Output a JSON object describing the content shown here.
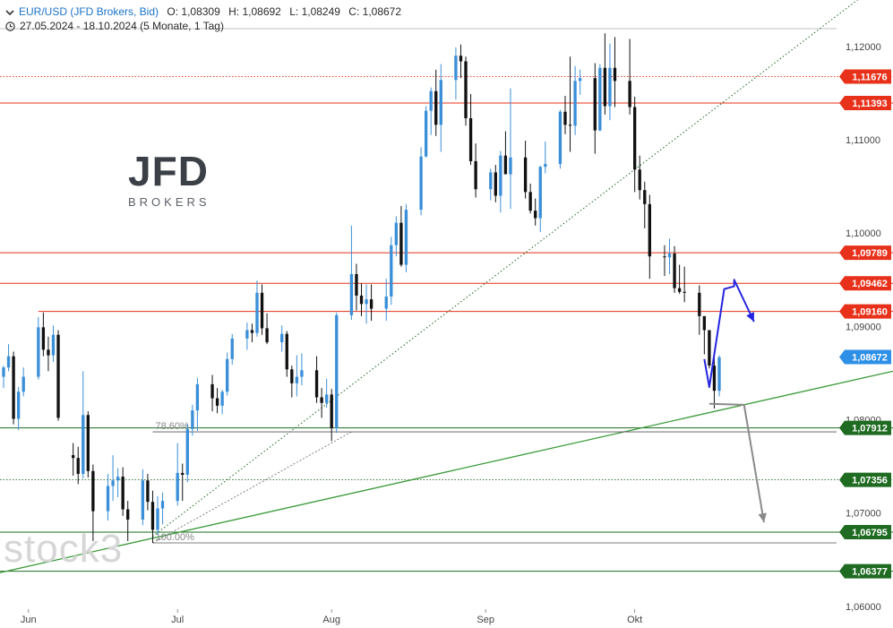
{
  "header": {
    "symbol": "EUR/USD (JFD Brokers, Bid)",
    "open_label": "O:",
    "open": "1,08309",
    "high_label": "H:",
    "high": "1,08692",
    "low_label": "L:",
    "low": "1,08249",
    "close_label": "C:",
    "close": "1,08672",
    "date_range": "27.05.2024 - 18.10.2024",
    "period": "(5 Monate, 1 Tag)"
  },
  "logo": {
    "name": "JFD",
    "sub": "BROKERS"
  },
  "watermark": "stock3",
  "colors": {
    "up": "#3a8fd8",
    "down": "#111111",
    "resistance": "#e8311a",
    "support": "#1f6b21",
    "current": "#2d8fe6",
    "trend": "#3a9a3a",
    "blue_arrow": "#2424e0",
    "gray_arrow": "#8a8a8a",
    "grid_text": "#444444"
  },
  "chart_data": {
    "type": "candlestick",
    "x": [
      "27.05.2024",
      "18.10.2024"
    ],
    "ylim": [
      1.0597,
      1.1219
    ],
    "y_ticks": [
      {
        "v": 1.06,
        "label": "1,06000"
      },
      {
        "v": 1.07,
        "label": "1,07000"
      },
      {
        "v": 1.08,
        "label": "1,08000"
      },
      {
        "v": 1.09,
        "label": "1,09000"
      },
      {
        "v": 1.1,
        "label": "1,10000"
      },
      {
        "v": 1.11,
        "label": "1,11000"
      },
      {
        "v": 1.12,
        "label": "1,12000"
      }
    ],
    "x_ticks": [
      {
        "date": "01.06.2024",
        "label": "Jun"
      },
      {
        "date": "01.07.2024",
        "label": "Jul"
      },
      {
        "date": "01.08.2024",
        "label": "Aug"
      },
      {
        "date": "01.09.2024",
        "label": "Sep"
      },
      {
        "date": "01.10.2024",
        "label": "Okt"
      }
    ],
    "levels": [
      {
        "value": 1.11676,
        "label": "1,11676",
        "kind": "resistance",
        "style": "dotted"
      },
      {
        "value": 1.11393,
        "label": "1,11393",
        "kind": "resistance",
        "style": "solid"
      },
      {
        "value": 1.09789,
        "label": "1,09789",
        "kind": "resistance",
        "style": "solid"
      },
      {
        "value": 1.09462,
        "label": "1,09462",
        "kind": "resistance",
        "style": "solid"
      },
      {
        "value": 1.0916,
        "label": "1,09160",
        "kind": "resistance",
        "style": "solid",
        "start": "03.06.2024"
      },
      {
        "value": 1.08672,
        "label": "1,08672",
        "kind": "current",
        "style": "none"
      },
      {
        "value": 1.07912,
        "label": "1,07912",
        "kind": "support",
        "style": "solid"
      },
      {
        "value": 1.07356,
        "label": "1,07356",
        "kind": "support",
        "style": "dotted"
      },
      {
        "value": 1.06795,
        "label": "1,06795",
        "kind": "support",
        "style": "solid"
      },
      {
        "value": 1.06377,
        "label": "1,06377",
        "kind": "support",
        "style": "solid"
      }
    ],
    "fib": {
      "start": "26.06.2024",
      "end": "05.08.2024",
      "levels": [
        {
          "value": 1.0787,
          "label": "78.60%"
        },
        {
          "value": 1.0668,
          "label": "100.00%"
        }
      ]
    },
    "trendlines": [
      {
        "p1": [
          "27.05.2024",
          1.0637
        ],
        "p2": [
          "18.10.2024",
          1.081
        ],
        "style": "solid"
      },
      {
        "p1": [
          "26.06.2024",
          1.0675
        ],
        "p2": [
          "18.10.2024",
          1.1137
        ],
        "style": "dotted"
      }
    ],
    "projections": [
      {
        "name": "blue",
        "points": [
          [
            "15.10.2024",
            1.0865
          ],
          [
            "16.10.2024",
            1.0835
          ],
          [
            "19.10.2024",
            1.094
          ],
          [
            "21.10.2024",
            1.0943
          ],
          [
            "21.10.2024",
            1.095
          ],
          [
            "25.10.2024",
            1.0905
          ]
        ]
      },
      {
        "name": "gray",
        "points": [
          [
            "16.10.2024",
            1.0817
          ],
          [
            "23.10.2024",
            1.0816
          ],
          [
            "27.10.2024",
            1.069
          ]
        ]
      }
    ],
    "candles": [
      [
        "27.05.2024",
        1.0846,
        1.0858,
        1.0834,
        1.0856
      ],
      [
        "28.05.2024",
        1.0856,
        1.0881,
        1.0852,
        1.0868
      ],
      [
        "29.05.2024",
        1.0868,
        1.0873,
        1.0795,
        1.0801
      ],
      [
        "30.05.2024",
        1.0801,
        1.0835,
        1.0789,
        1.083
      ],
      [
        "31.05.2024",
        1.083,
        1.0856,
        1.0825,
        1.0846
      ],
      [
        "03.06.2024",
        1.0846,
        1.091,
        1.0843,
        1.0899
      ],
      [
        "04.06.2024",
        1.0899,
        1.0915,
        1.0868,
        1.0875
      ],
      [
        "05.06.2024",
        1.0875,
        1.0889,
        1.0852,
        1.0869
      ],
      [
        "06.06.2024",
        1.0869,
        1.0901,
        1.0862,
        1.0891
      ],
      [
        "07.06.2024",
        1.0891,
        1.0896,
        1.0799,
        1.0802
      ],
      [
        "10.06.2024",
        1.0762,
        1.0775,
        1.074,
        1.0759
      ],
      [
        "11.06.2024",
        1.0759,
        1.0771,
        1.0731,
        1.0742
      ],
      [
        "12.06.2024",
        1.0742,
        1.0852,
        1.0737,
        1.0805
      ],
      [
        "13.06.2024",
        1.0805,
        1.0809,
        1.0738,
        1.0745
      ],
      [
        "14.06.2024",
        1.0745,
        1.0752,
        1.067,
        1.0702
      ],
      [
        "17.06.2024",
        1.0702,
        1.0742,
        1.0692,
        1.0729
      ],
      [
        "18.06.2024",
        1.0729,
        1.0762,
        1.0713,
        1.0735
      ],
      [
        "19.06.2024",
        1.0735,
        1.0748,
        1.0717,
        1.0739
      ],
      [
        "20.06.2024",
        1.0739,
        1.0749,
        1.0697,
        1.0704
      ],
      [
        "21.06.2024",
        1.0704,
        1.0713,
        1.067,
        1.0693
      ],
      [
        "24.06.2024",
        1.0693,
        1.0747,
        1.0687,
        1.0735
      ],
      [
        "25.06.2024",
        1.0735,
        1.0742,
        1.0703,
        1.0712
      ],
      [
        "26.06.2024",
        1.0712,
        1.0724,
        1.0668,
        1.0682
      ],
      [
        "27.06.2024",
        1.0682,
        1.0718,
        1.0677,
        1.0705
      ],
      [
        "28.06.2024",
        1.0705,
        1.0722,
        1.0688,
        1.0713
      ],
      [
        "01.07.2024",
        1.0713,
        1.0775,
        1.0708,
        1.0743
      ],
      [
        "02.07.2024",
        1.0743,
        1.0753,
        1.0713,
        1.0741
      ],
      [
        "03.07.2024",
        1.0741,
        1.0796,
        1.0733,
        1.079
      ],
      [
        "04.07.2024",
        1.079,
        1.0816,
        1.0783,
        1.081
      ],
      [
        "05.07.2024",
        1.081,
        1.0845,
        1.0788,
        1.0838
      ],
      [
        "08.07.2024",
        1.0838,
        1.0848,
        1.0809,
        1.0823
      ],
      [
        "09.07.2024",
        1.0823,
        1.0834,
        1.0807,
        1.0815
      ],
      [
        "10.07.2024",
        1.0815,
        1.0832,
        1.0806,
        1.083
      ],
      [
        "11.07.2024",
        1.083,
        1.0872,
        1.0826,
        1.0865
      ],
      [
        "12.07.2024",
        1.0865,
        1.0892,
        1.0859,
        1.0887
      ],
      [
        "15.07.2024",
        1.0887,
        1.0904,
        1.0875,
        1.0896
      ],
      [
        "16.07.2024",
        1.0896,
        1.0903,
        1.0883,
        1.0893
      ],
      [
        "17.07.2024",
        1.0893,
        1.0949,
        1.0889,
        1.0936
      ],
      [
        "18.07.2024",
        1.0936,
        1.0945,
        1.0891,
        1.0898
      ],
      [
        "19.07.2024",
        1.0898,
        1.0914,
        1.0881,
        1.0883
      ],
      [
        "22.07.2024",
        1.0883,
        1.0901,
        1.0873,
        1.0892
      ],
      [
        "23.07.2024",
        1.0892,
        1.0895,
        1.0846,
        1.0854
      ],
      [
        "24.07.2024",
        1.0854,
        1.0858,
        1.0824,
        1.0839
      ],
      [
        "25.07.2024",
        1.0839,
        1.0869,
        1.0825,
        1.0846
      ],
      [
        "26.07.2024",
        1.0846,
        1.0871,
        1.0837,
        1.0853
      ],
      [
        "29.07.2024",
        1.0853,
        1.0868,
        1.0818,
        1.0824
      ],
      [
        "30.07.2024",
        1.0824,
        1.0834,
        1.0802,
        1.0818
      ],
      [
        "31.07.2024",
        1.0818,
        1.0844,
        1.0813,
        1.0827
      ],
      [
        "01.08.2024",
        1.0827,
        1.0833,
        1.0777,
        1.0791
      ],
      [
        "02.08.2024",
        1.0791,
        1.0915,
        1.0786,
        1.0912
      ],
      [
        "05.08.2024",
        1.0912,
        1.1008,
        1.0907,
        1.0956
      ],
      [
        "06.08.2024",
        1.0956,
        1.0967,
        1.0917,
        1.0933
      ],
      [
        "07.08.2024",
        1.0933,
        1.0946,
        1.0911,
        1.0924
      ],
      [
        "08.08.2024",
        1.0924,
        1.0945,
        1.0903,
        1.0929
      ],
      [
        "09.08.2024",
        1.0929,
        1.0945,
        1.0906,
        1.0919
      ],
      [
        "12.08.2024",
        1.0919,
        1.0951,
        1.0906,
        1.0932
      ],
      [
        "13.08.2024",
        1.0932,
        1.0996,
        1.0923,
        1.0987
      ],
      [
        "14.08.2024",
        1.0987,
        1.1018,
        1.0975,
        1.1011
      ],
      [
        "15.08.2024",
        1.1011,
        1.1029,
        1.0964,
        1.0966
      ],
      [
        "16.08.2024",
        1.0966,
        1.1031,
        1.0958,
        1.1025
      ],
      [
        "19.08.2024",
        1.1025,
        1.1092,
        1.1019,
        1.1082
      ],
      [
        "20.08.2024",
        1.1082,
        1.1136,
        1.1081,
        1.1131
      ],
      [
        "21.08.2024",
        1.1131,
        1.1156,
        1.1105,
        1.1152
      ],
      [
        "22.08.2024",
        1.1152,
        1.1175,
        1.1104,
        1.1116
      ],
      [
        "23.08.2024",
        1.1116,
        1.1181,
        1.1087,
        1.1164
      ],
      [
        "26.08.2024",
        1.1164,
        1.1199,
        1.1143,
        1.119
      ],
      [
        "27.08.2024",
        1.119,
        1.1202,
        1.1166,
        1.1184
      ],
      [
        "28.08.2024",
        1.1184,
        1.1189,
        1.1115,
        1.1123
      ],
      [
        "29.08.2024",
        1.1123,
        1.1149,
        1.1073,
        1.1077
      ],
      [
        "30.08.2024",
        1.1077,
        1.1096,
        1.1038,
        1.1047
      ],
      [
        "02.09.2024",
        1.1047,
        1.1069,
        1.1035,
        1.1065
      ],
      [
        "03.09.2024",
        1.1065,
        1.1073,
        1.1033,
        1.104
      ],
      [
        "04.09.2024",
        1.104,
        1.1088,
        1.1022,
        1.1083
      ],
      [
        "05.09.2024",
        1.1083,
        1.1109,
        1.1066,
        1.1063
      ],
      [
        "06.09.2024",
        1.1063,
        1.1155,
        1.1026,
        1.1081
      ],
      [
        "09.09.2024",
        1.1081,
        1.1099,
        1.1037,
        1.1044
      ],
      [
        "10.09.2024",
        1.1044,
        1.1053,
        1.1021,
        1.1024
      ],
      [
        "11.09.2024",
        1.1024,
        1.1037,
        1.1008,
        1.1016
      ],
      [
        "12.09.2024",
        1.1016,
        1.1072,
        1.1001,
        1.1071
      ],
      [
        "13.09.2024",
        1.1071,
        1.1098,
        1.1064,
        1.1074
      ],
      [
        "16.09.2024",
        1.1074,
        1.1132,
        1.1069,
        1.113
      ],
      [
        "17.09.2024",
        1.113,
        1.1147,
        1.1106,
        1.1116
      ],
      [
        "18.09.2024",
        1.1116,
        1.1189,
        1.1087,
        1.1115
      ],
      [
        "19.09.2024",
        1.1115,
        1.1179,
        1.1105,
        1.1163
      ],
      [
        "20.09.2024",
        1.1163,
        1.1175,
        1.1148,
        1.1166
      ],
      [
        "23.09.2024",
        1.1166,
        1.1182,
        1.1085,
        1.111
      ],
      [
        "24.09.2024",
        1.111,
        1.1181,
        1.1109,
        1.1177
      ],
      [
        "25.09.2024",
        1.1177,
        1.1214,
        1.1127,
        1.1136
      ],
      [
        "26.09.2024",
        1.1136,
        1.1203,
        1.1121,
        1.1177
      ],
      [
        "27.09.2024",
        1.1177,
        1.121,
        1.1135,
        1.1163
      ],
      [
        "30.09.2024",
        1.1163,
        1.1208,
        1.1127,
        1.1135
      ],
      [
        "01.10.2024",
        1.1135,
        1.1146,
        1.1044,
        1.1068
      ],
      [
        "02.10.2024",
        1.1068,
        1.1083,
        1.1036,
        1.1046
      ],
      [
        "03.10.2024",
        1.1046,
        1.1055,
        1.1005,
        1.1031
      ],
      [
        "04.10.2024",
        1.1031,
        1.1041,
        1.0951,
        1.0975
      ],
      [
        "07.10.2024",
        1.0975,
        1.0987,
        1.0954,
        1.0974
      ],
      [
        "08.10.2024",
        1.0974,
        1.0994,
        1.0956,
        1.0978
      ],
      [
        "09.10.2024",
        1.0978,
        1.0986,
        1.0936,
        1.0941
      ],
      [
        "10.10.2024",
        1.0941,
        1.0966,
        1.0935,
        1.0937
      ],
      [
        "11.10.2024",
        1.0937,
        1.0964,
        1.0926,
        1.0936
      ],
      [
        "14.10.2024",
        1.0936,
        1.0944,
        1.0891,
        1.0911
      ],
      [
        "15.10.2024",
        1.0911,
        1.0908,
        1.087,
        1.0896
      ],
      [
        "16.10.2024",
        1.0896,
        1.0894,
        1.0855,
        1.0858
      ],
      [
        "17.10.2024",
        1.0858,
        1.0873,
        1.0812,
        1.0831
      ],
      [
        "18.10.2024",
        1.0831,
        1.0869,
        1.0825,
        1.0867
      ]
    ]
  }
}
